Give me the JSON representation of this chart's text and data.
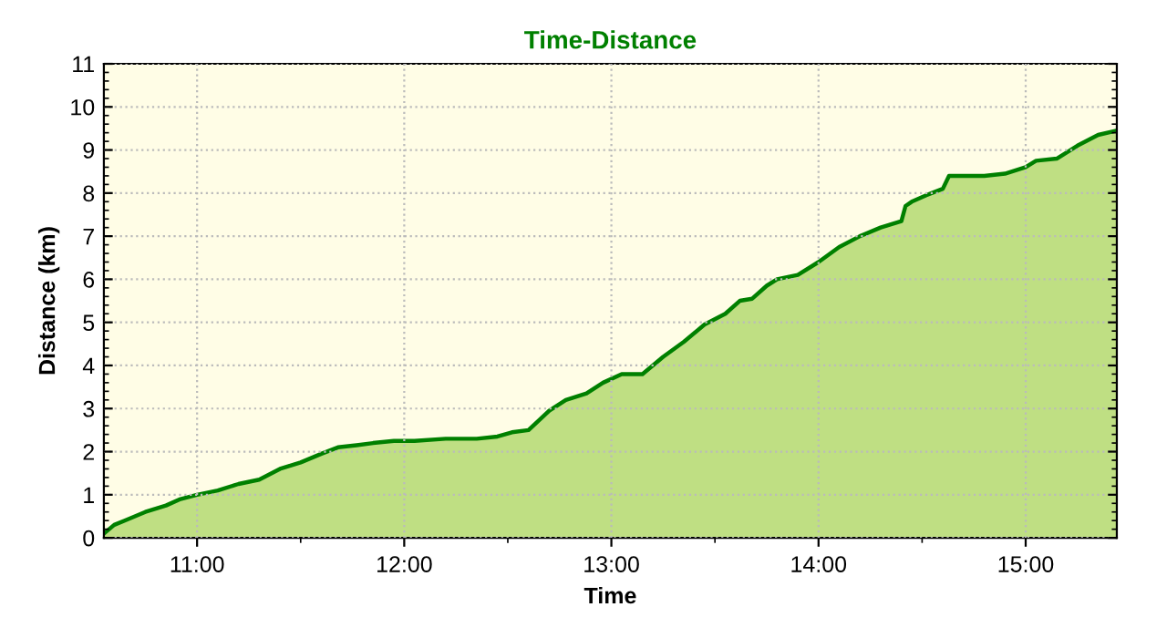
{
  "chart_data": {
    "type": "area",
    "title": "Time-Distance",
    "xlabel": "Time",
    "ylabel": "Distance (km)",
    "xlim": [
      10.55,
      15.44
    ],
    "ylim": [
      0,
      11
    ],
    "xticks": [
      {
        "value": 11,
        "label": "11:00"
      },
      {
        "value": 12,
        "label": "12:00"
      },
      {
        "value": 13,
        "label": "13:00"
      },
      {
        "value": 14,
        "label": "14:00"
      },
      {
        "value": 15,
        "label": "15:00"
      }
    ],
    "yticks": [
      0,
      1,
      2,
      3,
      4,
      5,
      6,
      7,
      8,
      9,
      10,
      11
    ],
    "grid": true,
    "legend": false,
    "series": [
      {
        "color": "#008000",
        "x": [
          10.55,
          10.6,
          10.65,
          10.75,
          10.85,
          10.92,
          11.0,
          11.1,
          11.2,
          11.3,
          11.4,
          11.5,
          11.6,
          11.68,
          11.77,
          11.85,
          11.95,
          12.05,
          12.2,
          12.35,
          12.45,
          12.52,
          12.6,
          12.7,
          12.78,
          12.88,
          12.96,
          13.05,
          13.15,
          13.25,
          13.35,
          13.45,
          13.55,
          13.62,
          13.68,
          13.75,
          13.8,
          13.9,
          14.0,
          14.1,
          14.2,
          14.3,
          14.4,
          14.42,
          14.45,
          14.52,
          14.6,
          14.63,
          14.7,
          14.8,
          14.9,
          15.0,
          15.05,
          15.15,
          15.25,
          15.35,
          15.44
        ],
        "values": [
          0.1,
          0.3,
          0.4,
          0.6,
          0.75,
          0.9,
          1.0,
          1.1,
          1.25,
          1.35,
          1.6,
          1.75,
          1.95,
          2.1,
          2.15,
          2.2,
          2.25,
          2.25,
          2.3,
          2.3,
          2.35,
          2.45,
          2.5,
          2.95,
          3.2,
          3.35,
          3.6,
          3.8,
          3.8,
          4.2,
          4.55,
          4.95,
          5.2,
          5.5,
          5.55,
          5.85,
          6.0,
          6.1,
          6.4,
          6.75,
          7.0,
          7.2,
          7.35,
          7.7,
          7.8,
          7.95,
          8.1,
          8.4,
          8.4,
          8.4,
          8.45,
          8.6,
          8.75,
          8.8,
          9.1,
          9.35,
          9.45
        ]
      }
    ]
  }
}
